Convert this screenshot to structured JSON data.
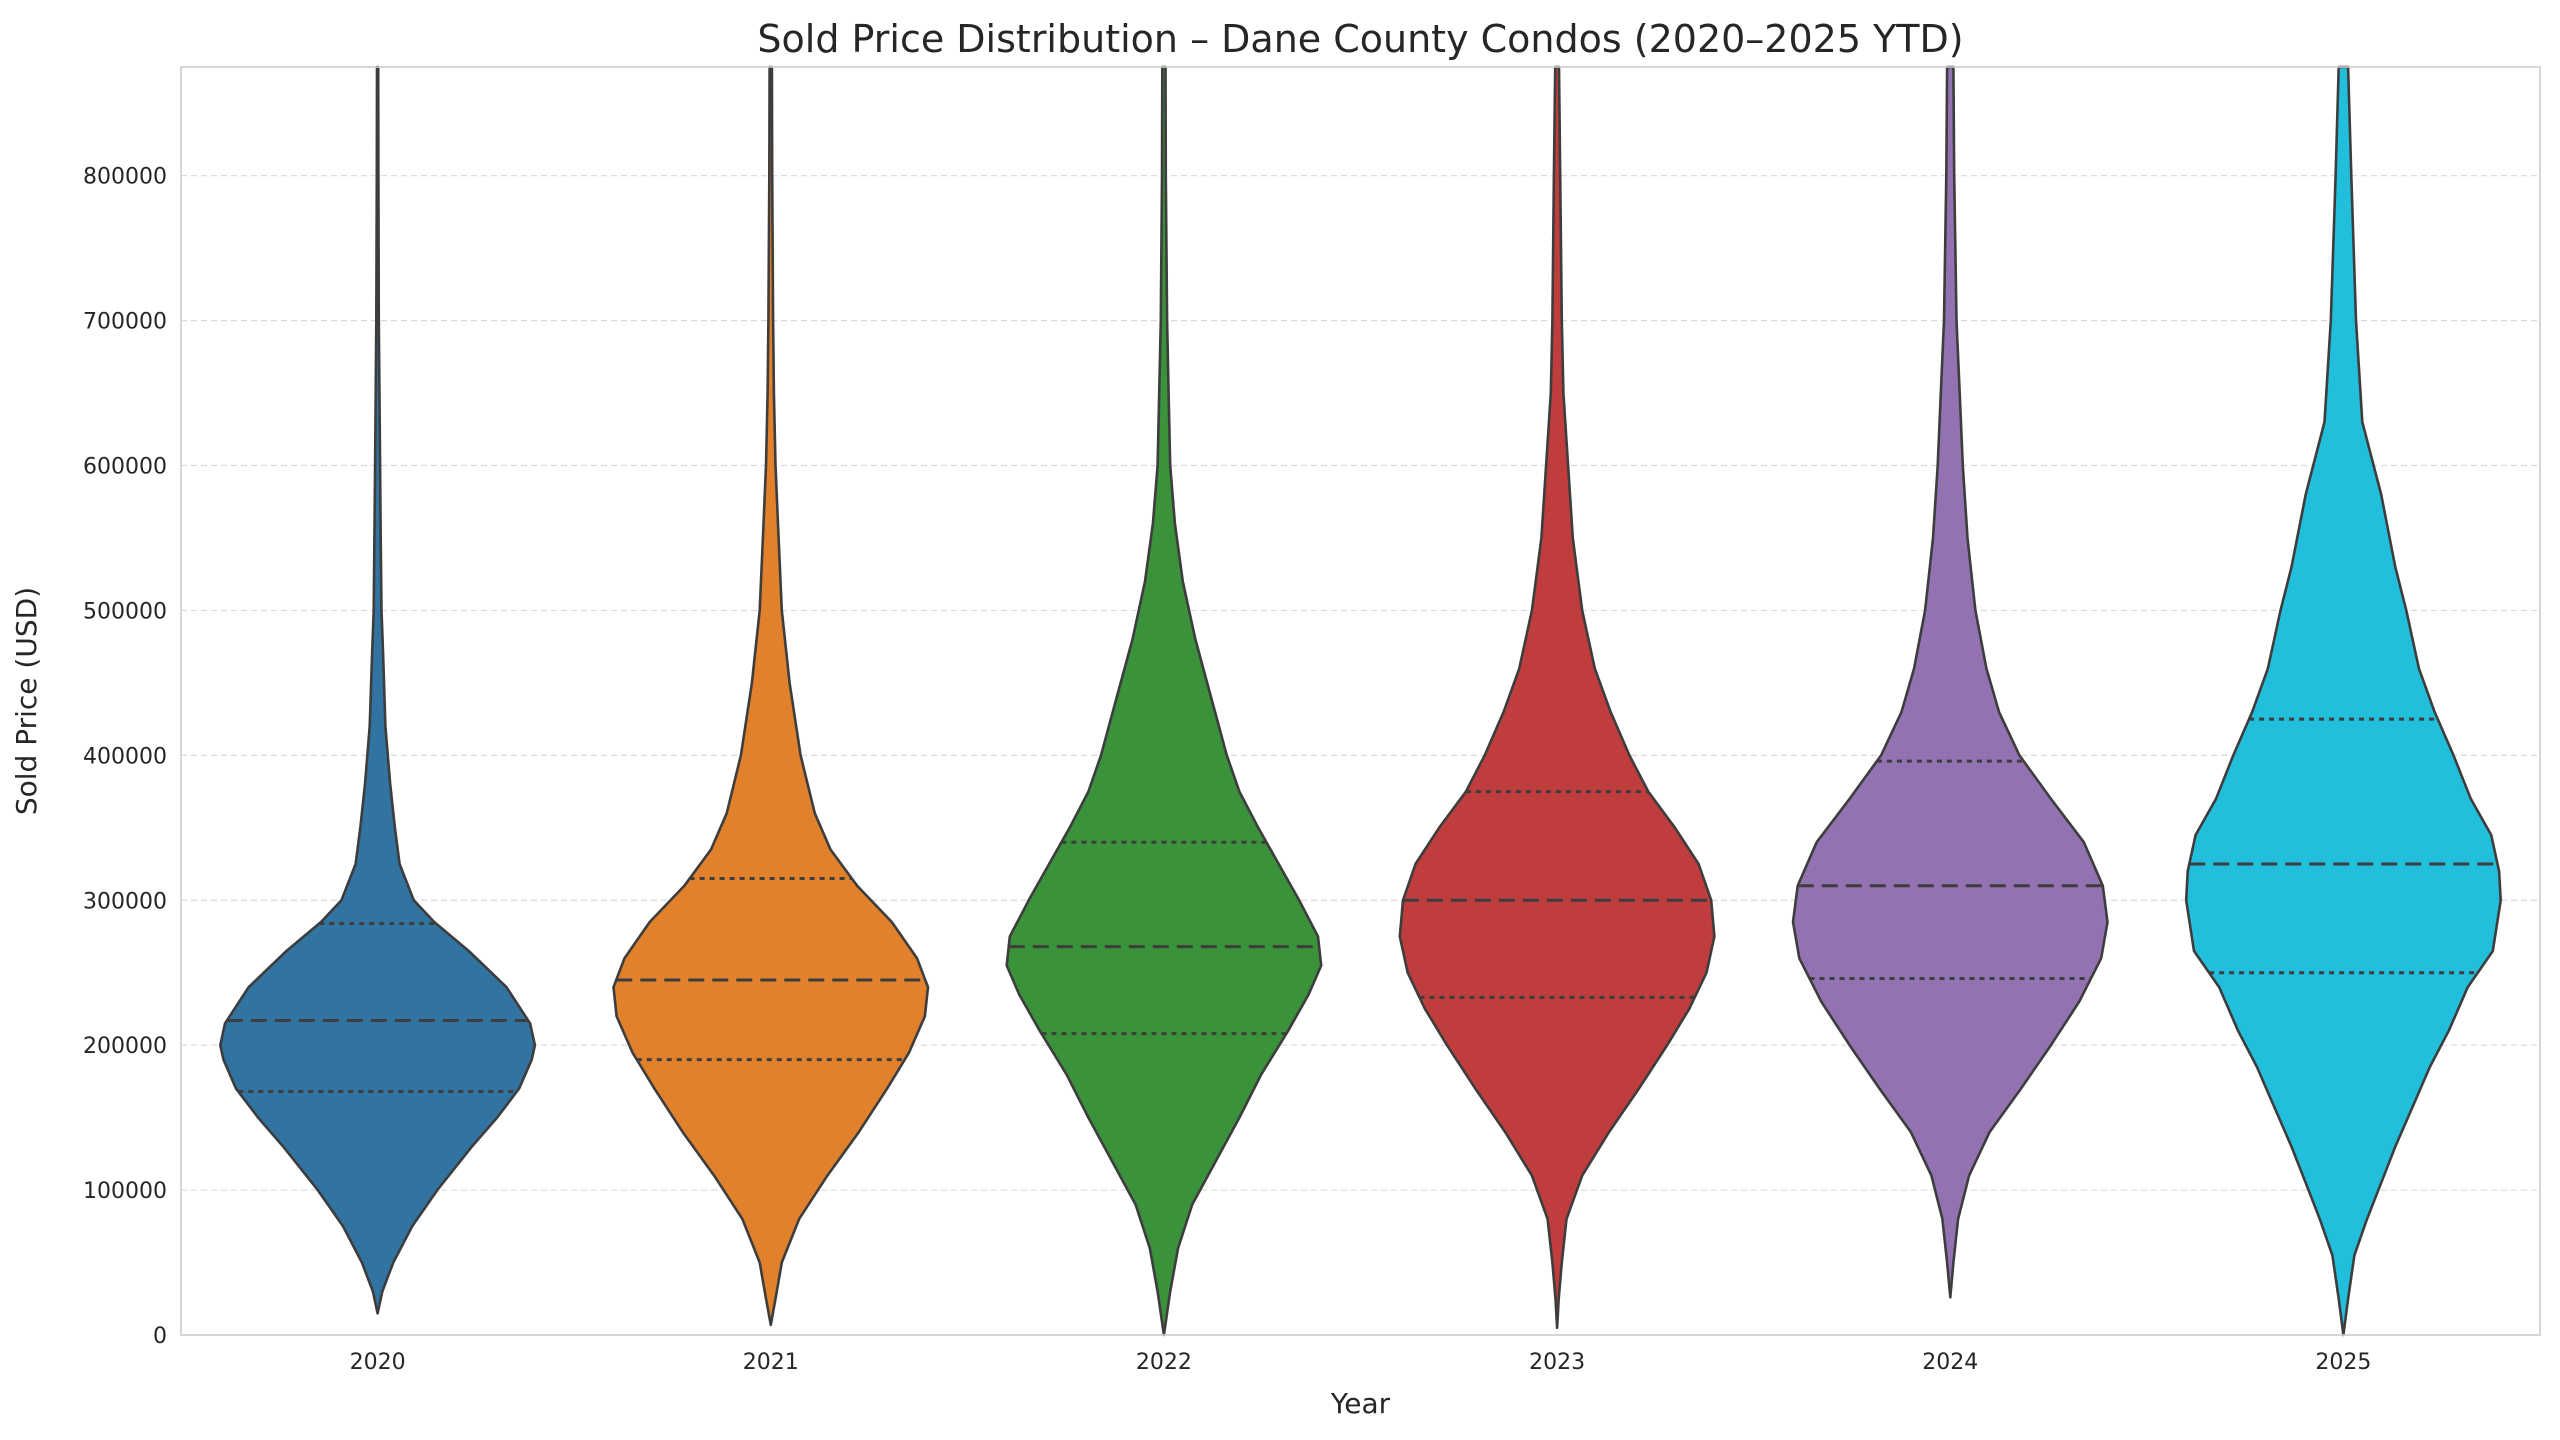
{
  "chart_data": {
    "type": "violin",
    "title": "Sold Price Distribution – Dane County Condos (2020–2025 YTD)",
    "xlabel": "Year",
    "ylabel": "Sold Price (USD)",
    "ylim": [
      0,
      875000
    ],
    "yticks": [
      "0",
      "100000",
      "200000",
      "300000",
      "400000",
      "500000",
      "600000",
      "700000",
      "800000"
    ],
    "grid": "y-dashed",
    "inner": "quartile",
    "categories": [
      "2020",
      "2021",
      "2022",
      "2023",
      "2024",
      "2025"
    ],
    "series": [
      {
        "category": "2020",
        "color": "#3274a1",
        "quartiles": [
          168000,
          217000,
          284000
        ],
        "density": [
          [
            15000,
            0
          ],
          [
            30000,
            0.03
          ],
          [
            50000,
            0.1
          ],
          [
            75000,
            0.22
          ],
          [
            100000,
            0.38
          ],
          [
            130000,
            0.6
          ],
          [
            150000,
            0.76
          ],
          [
            170000,
            0.9
          ],
          [
            190000,
            0.98
          ],
          [
            200000,
            1.0
          ],
          [
            215000,
            0.97
          ],
          [
            240000,
            0.82
          ],
          [
            265000,
            0.58
          ],
          [
            285000,
            0.36
          ],
          [
            300000,
            0.23
          ],
          [
            325000,
            0.14
          ],
          [
            350000,
            0.11
          ],
          [
            380000,
            0.08
          ],
          [
            420000,
            0.05
          ],
          [
            470000,
            0.035
          ],
          [
            500000,
            0.025
          ],
          [
            550000,
            0.02
          ],
          [
            600000,
            0.016
          ],
          [
            700000,
            0.008
          ],
          [
            800000,
            0.005
          ],
          [
            875000,
            0.004
          ]
        ]
      },
      {
        "category": "2021",
        "color": "#e1812c",
        "quartiles": [
          190000,
          245000,
          315000
        ],
        "density": [
          [
            7000,
            0
          ],
          [
            25000,
            0.03
          ],
          [
            50000,
            0.07
          ],
          [
            80000,
            0.18
          ],
          [
            110000,
            0.36
          ],
          [
            140000,
            0.56
          ],
          [
            170000,
            0.74
          ],
          [
            195000,
            0.88
          ],
          [
            220000,
            0.98
          ],
          [
            240000,
            1.0
          ],
          [
            260000,
            0.93
          ],
          [
            285000,
            0.77
          ],
          [
            310000,
            0.55
          ],
          [
            335000,
            0.38
          ],
          [
            360000,
            0.28
          ],
          [
            400000,
            0.19
          ],
          [
            450000,
            0.12
          ],
          [
            500000,
            0.07
          ],
          [
            550000,
            0.05
          ],
          [
            600000,
            0.03
          ],
          [
            650000,
            0.02
          ],
          [
            700000,
            0.015
          ],
          [
            800000,
            0.009
          ],
          [
            875000,
            0.007
          ]
        ]
      },
      {
        "category": "2022",
        "color": "#3a923a",
        "quartiles": [
          208000,
          268000,
          340000
        ],
        "density": [
          [
            0,
            0
          ],
          [
            30000,
            0.04
          ],
          [
            60000,
            0.09
          ],
          [
            90000,
            0.18
          ],
          [
            120000,
            0.33
          ],
          [
            150000,
            0.48
          ],
          [
            180000,
            0.62
          ],
          [
            210000,
            0.79
          ],
          [
            235000,
            0.92
          ],
          [
            255000,
            1.0
          ],
          [
            275000,
            0.98
          ],
          [
            300000,
            0.86
          ],
          [
            325000,
            0.73
          ],
          [
            350000,
            0.6
          ],
          [
            375000,
            0.48
          ],
          [
            400000,
            0.4
          ],
          [
            440000,
            0.3
          ],
          [
            480000,
            0.2
          ],
          [
            520000,
            0.12
          ],
          [
            560000,
            0.07
          ],
          [
            600000,
            0.04
          ],
          [
            650000,
            0.03
          ],
          [
            700000,
            0.02
          ],
          [
            800000,
            0.012
          ],
          [
            875000,
            0.01
          ]
        ]
      },
      {
        "category": "2023",
        "color": "#c03d3e",
        "quartiles": [
          233000,
          300000,
          375000
        ],
        "density": [
          [
            5000,
            0
          ],
          [
            25000,
            0.01
          ],
          [
            50000,
            0.03
          ],
          [
            80000,
            0.06
          ],
          [
            110000,
            0.16
          ],
          [
            140000,
            0.33
          ],
          [
            170000,
            0.52
          ],
          [
            200000,
            0.7
          ],
          [
            225000,
            0.84
          ],
          [
            250000,
            0.95
          ],
          [
            275000,
            1.0
          ],
          [
            300000,
            0.98
          ],
          [
            325000,
            0.9
          ],
          [
            350000,
            0.75
          ],
          [
            375000,
            0.58
          ],
          [
            400000,
            0.46
          ],
          [
            430000,
            0.34
          ],
          [
            460000,
            0.24
          ],
          [
            500000,
            0.16
          ],
          [
            550000,
            0.1
          ],
          [
            600000,
            0.07
          ],
          [
            650000,
            0.04
          ],
          [
            700000,
            0.03
          ],
          [
            800000,
            0.02
          ],
          [
            875000,
            0.012
          ]
        ]
      },
      {
        "category": "2024",
        "color": "#9372b2",
        "quartiles": [
          246000,
          310000,
          396000
        ],
        "density": [
          [
            26000,
            0
          ],
          [
            50000,
            0.02
          ],
          [
            80000,
            0.05
          ],
          [
            110000,
            0.12
          ],
          [
            140000,
            0.25
          ],
          [
            170000,
            0.45
          ],
          [
            200000,
            0.64
          ],
          [
            230000,
            0.82
          ],
          [
            260000,
            0.96
          ],
          [
            285000,
            1.0
          ],
          [
            310000,
            0.97
          ],
          [
            340000,
            0.85
          ],
          [
            370000,
            0.64
          ],
          [
            400000,
            0.44
          ],
          [
            430000,
            0.31
          ],
          [
            460000,
            0.23
          ],
          [
            500000,
            0.16
          ],
          [
            550000,
            0.11
          ],
          [
            600000,
            0.08
          ],
          [
            650000,
            0.06
          ],
          [
            700000,
            0.04
          ],
          [
            800000,
            0.025
          ],
          [
            875000,
            0.02
          ]
        ]
      },
      {
        "category": "2025",
        "color": "#22bfdd",
        "quartiles": [
          250000,
          325000,
          425000
        ],
        "density": [
          [
            0,
            0
          ],
          [
            25000,
            0.03
          ],
          [
            55000,
            0.07
          ],
          [
            80000,
            0.15
          ],
          [
            105000,
            0.24
          ],
          [
            130000,
            0.33
          ],
          [
            160000,
            0.45
          ],
          [
            185000,
            0.55
          ],
          [
            210000,
            0.67
          ],
          [
            240000,
            0.79
          ],
          [
            265000,
            0.95
          ],
          [
            300000,
            1.0
          ],
          [
            320000,
            0.99
          ],
          [
            345000,
            0.94
          ],
          [
            370000,
            0.81
          ],
          [
            400000,
            0.7
          ],
          [
            430000,
            0.58
          ],
          [
            460000,
            0.48
          ],
          [
            500000,
            0.4
          ],
          [
            530000,
            0.33
          ],
          [
            580000,
            0.24
          ],
          [
            630000,
            0.12
          ],
          [
            700000,
            0.08
          ],
          [
            800000,
            0.05
          ],
          [
            875000,
            0.03
          ]
        ]
      }
    ]
  }
}
